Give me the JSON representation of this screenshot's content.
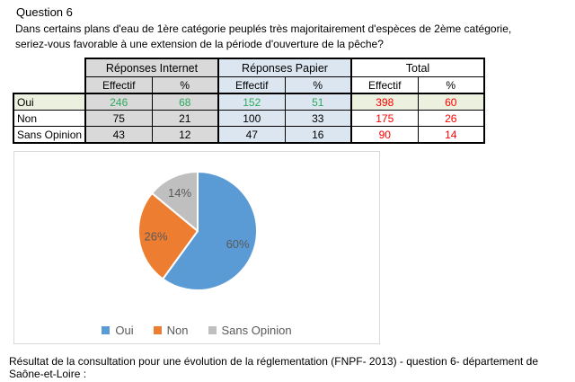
{
  "page": {
    "title": "Question 6",
    "question_line1": "Dans certains plans d'eau de 1ère catégorie peuplés très majoritairement d'espèces de 2ème catégorie,",
    "question_line2": "seriez-vous favorable à une extension de la période d'ouverture de la pêche?",
    "footer": "Résultat de la consultation pour une évolution de la réglementation (FNPF- 2013) - question 6-  département de Saône-et-Loire :"
  },
  "table": {
    "groups": [
      {
        "label": "Réponses Internet",
        "bg": "#d9d9d9"
      },
      {
        "label": "Réponses Papier",
        "bg": "#dce6f1"
      },
      {
        "label": "Total",
        "bg": "#ffffff"
      }
    ],
    "subheaders": [
      "Effectif",
      "%",
      "Effectif",
      "%",
      "Effectif",
      "%"
    ],
    "rows": [
      {
        "label": "Oui",
        "values": [
          "246",
          "68",
          "152",
          "51",
          "398",
          "60"
        ]
      },
      {
        "label": "Non",
        "values": [
          "75",
          "21",
          "100",
          "33",
          "175",
          "26"
        ]
      },
      {
        "label": "Sans Opinion",
        "values": [
          "43",
          "12",
          "47",
          "16",
          "90",
          "14"
        ]
      }
    ],
    "colors": {
      "oui_row_highlight": "#ebf1de",
      "internet_bg": "#d9d9d9",
      "papier_bg": "#dce6f1",
      "oui_value_text": "#2eaa5e",
      "total_value_text": "#ff0000"
    }
  },
  "chart_data": {
    "type": "pie",
    "title": "",
    "categories": [
      "Oui",
      "Non",
      "Sans Opinion"
    ],
    "values": [
      60,
      26,
      14
    ],
    "labels": [
      "60%",
      "26%",
      "14%"
    ],
    "colors": [
      "#5b9bd5",
      "#ed7d31",
      "#bfbfbf"
    ],
    "label_color": "#595959",
    "legend_position": "bottom",
    "start_angle_deg": 0,
    "direction": "clockwise"
  }
}
